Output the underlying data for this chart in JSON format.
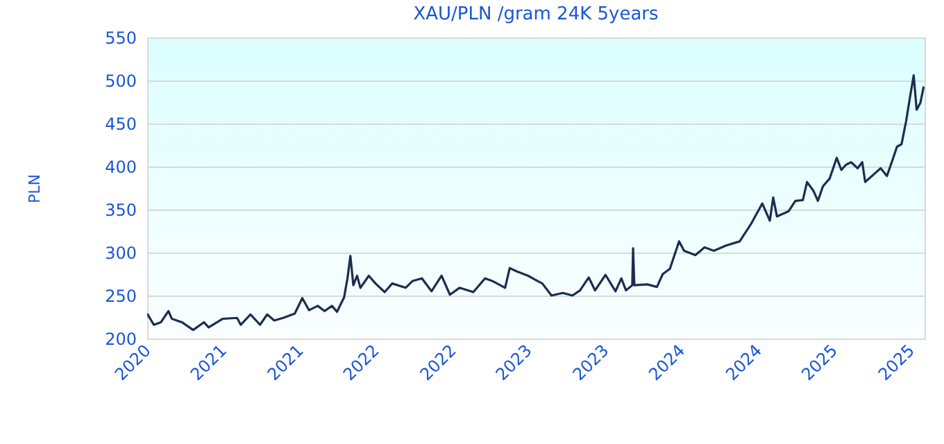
{
  "chart_data": {
    "type": "line",
    "title": "XAU/PLN /gram 24K 5years",
    "ylabel": "PLN",
    "x": [
      "2020-11-01",
      "2020-11-17",
      "2020-12-04",
      "2020-12-22",
      "2020-12-30",
      "2021-01-23",
      "2021-02-19",
      "2021-03-17",
      "2021-03-28",
      "2021-05-01",
      "2021-06-04",
      "2021-06-13",
      "2021-07-06",
      "2021-07-29",
      "2021-08-15",
      "2021-09-01",
      "2021-09-22",
      "2021-10-20",
      "2021-11-07",
      "2021-11-23",
      "2021-12-14",
      "2021-12-30",
      "2022-01-17",
      "2022-01-29",
      "2022-02-15",
      "2022-02-23",
      "2022-03-02",
      "2022-03-09",
      "2022-03-18",
      "2022-03-26",
      "2022-04-15",
      "2022-05-01",
      "2022-05-23",
      "2022-06-10",
      "2022-07-12",
      "2022-07-29",
      "2022-08-20",
      "2022-09-12",
      "2022-10-06",
      "2022-10-26",
      "2022-11-18",
      "2022-12-21",
      "2023-01-18",
      "2023-02-04",
      "2023-03-07",
      "2023-03-18",
      "2023-04-04",
      "2023-05-01",
      "2023-05-23",
      "2023-06-04",
      "2023-06-26",
      "2023-07-23",
      "2023-08-15",
      "2023-09-02",
      "2023-09-23",
      "2023-10-08",
      "2023-11-02",
      "2023-11-26",
      "2023-12-10",
      "2023-12-21",
      "2024-01-05",
      "2024-01-07",
      "2024-01-10",
      "2024-02-10",
      "2024-03-04",
      "2024-03-18",
      "2024-04-04",
      "2024-04-26",
      "2024-05-08",
      "2024-06-04",
      "2024-06-26",
      "2024-07-18",
      "2024-08-16",
      "2024-09-18",
      "2024-10-16",
      "2024-11-11",
      "2024-11-29",
      "2024-12-07",
      "2024-12-16",
      "2025-01-13",
      "2025-01-29",
      "2025-02-16",
      "2025-02-26",
      "2025-03-13",
      "2025-03-24",
      "2025-04-05",
      "2025-04-21",
      "2025-05-08",
      "2025-05-19",
      "2025-05-30",
      "2025-06-11",
      "2025-06-27",
      "2025-07-08",
      "2025-07-15",
      "2025-08-05",
      "2025-08-21",
      "2025-09-05",
      "2025-09-18",
      "2025-09-29",
      "2025-10-10",
      "2025-10-21",
      "2025-10-30",
      "2025-11-08",
      "2025-11-15",
      "2025-11-24",
      "2025-12-02"
    ],
    "series": [
      {
        "color": "#1a2e50",
        "values": [
          229,
          216,
          219,
          232,
          223,
          219,
          210,
          219,
          213,
          223,
          224,
          216,
          228,
          216,
          228,
          221,
          224,
          229,
          247,
          233,
          238,
          232,
          238,
          231,
          248,
          270,
          296,
          262,
          273,
          259,
          273,
          264,
          254,
          264,
          259,
          267,
          270,
          255,
          273,
          251,
          259,
          254,
          270,
          267,
          259,
          282,
          278,
          273,
          267,
          264,
          250,
          253,
          250,
          256,
          271,
          256,
          274,
          255,
          270,
          256,
          262,
          305,
          262,
          263,
          260,
          275,
          281,
          313,
          302,
          297,
          306,
          302,
          308,
          313,
          334,
          357,
          337,
          364,
          342,
          348,
          360,
          361,
          382,
          372,
          360,
          377,
          386,
          410,
          396,
          402,
          405,
          398,
          405,
          382,
          391,
          398,
          389,
          407,
          423,
          426,
          453,
          480,
          506,
          466,
          474,
          493
        ]
      }
    ],
    "xlim": [
      "2020-11-01",
      "2025-12-04"
    ],
    "xticks": [
      {
        "value": "2020-11-01",
        "label": "2020"
      },
      {
        "value": "2021-05-01",
        "label": "2021"
      },
      {
        "value": "2021-11-01",
        "label": "2021"
      },
      {
        "value": "2022-05-01",
        "label": "2022"
      },
      {
        "value": "2022-11-01",
        "label": "2022"
      },
      {
        "value": "2023-05-01",
        "label": "2023"
      },
      {
        "value": "2023-11-01",
        "label": "2023"
      },
      {
        "value": "2024-05-01",
        "label": "2024"
      },
      {
        "value": "2024-11-01",
        "label": "2024"
      },
      {
        "value": "2025-05-01",
        "label": "2025"
      },
      {
        "value": "2025-11-01",
        "label": "2025"
      }
    ],
    "ylim": [
      200,
      550
    ],
    "yticks": [
      200,
      250,
      300,
      350,
      400,
      450,
      500,
      550
    ],
    "grid": "y"
  }
}
